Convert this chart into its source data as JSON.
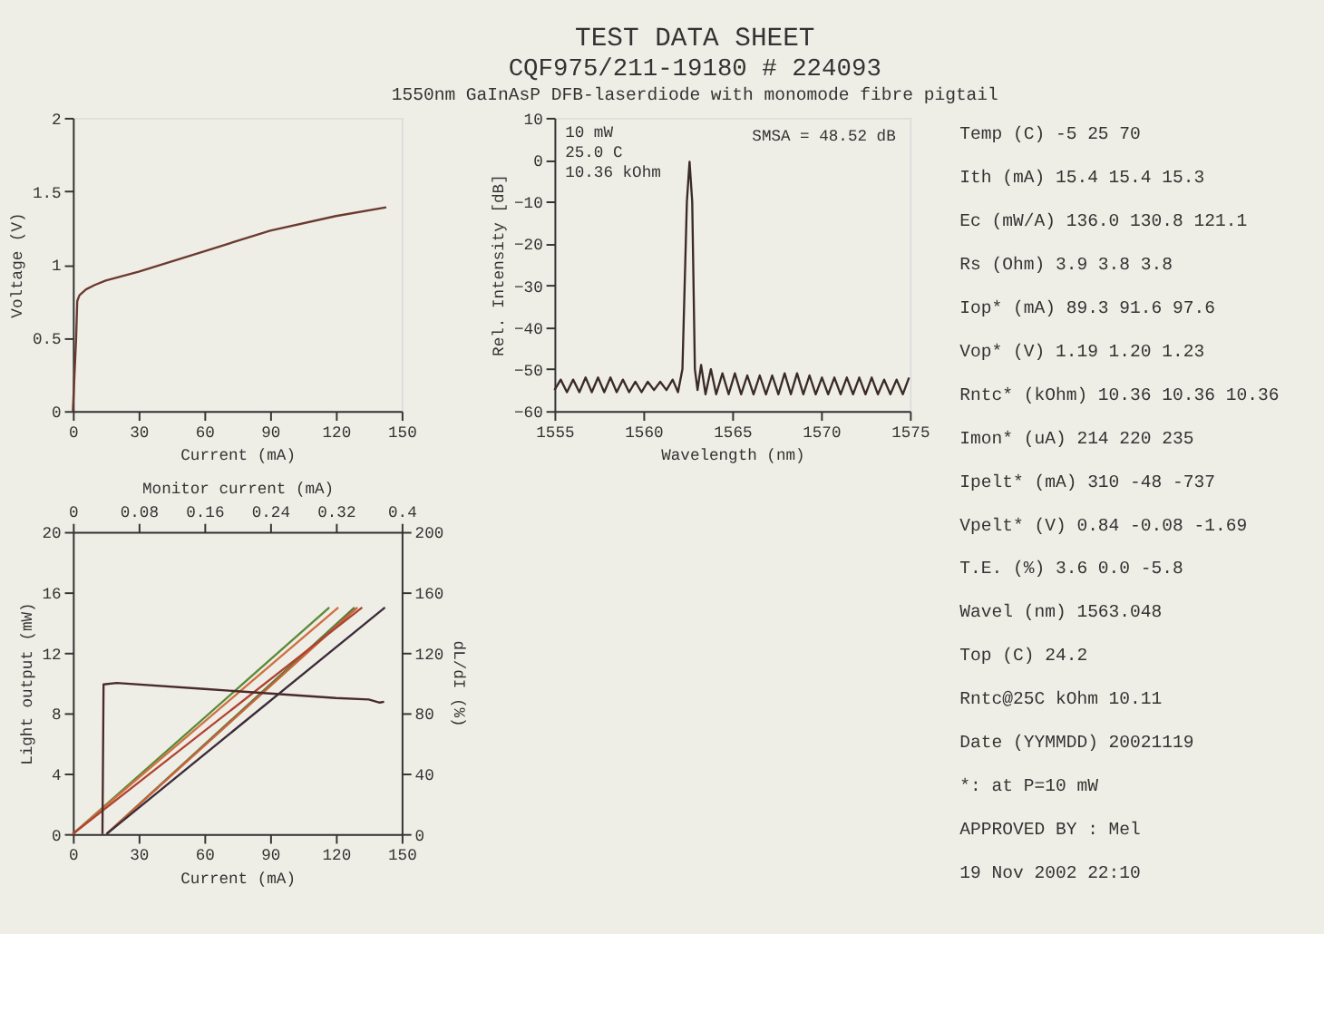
{
  "chart_data": [
    {
      "type": "other",
      "title": "TEST DATA SHEET",
      "subtitle": "CQF975/211-19180 # 224093",
      "annotations": [
        "1550nm GaInAsP DFB-laserdiode with monomode fibre pigtail"
      ]
    },
    {
      "type": "line",
      "xlabel": "Current (mA)",
      "ylabel": "Voltage (V)",
      "xlim": [
        0,
        150
      ],
      "xticks": [
        0,
        30,
        60,
        90,
        120,
        150
      ],
      "ylim": [
        0,
        2
      ],
      "yticks": [
        0,
        0.5,
        1,
        1.5,
        2
      ],
      "grid": false,
      "x": [
        0,
        1.5,
        2,
        3,
        6,
        10,
        15,
        20,
        30,
        60,
        90,
        120,
        143
      ],
      "series": [
        {
          "color": "#6b3a30",
          "values": [
            0,
            0.5,
            0.75,
            0.79,
            0.83,
            0.86,
            0.89,
            0.91,
            0.95,
            1.09,
            1.23,
            1.33,
            1.39
          ]
        }
      ]
    },
    {
      "type": "line",
      "xlabel": "Wavelength (nm)",
      "ylabel": "Rel. Intensity [dB]",
      "xlim": [
        1555,
        1575
      ],
      "xticks": [
        1555,
        1560,
        1565,
        1570,
        1575
      ],
      "ylim": [
        -60,
        10
      ],
      "yticks": [
        -60,
        -50,
        -40,
        -30,
        -20,
        -10,
        0,
        10
      ],
      "grid": false,
      "annotations": [
        "10 mW",
        "25.0 C",
        "10.36 kOhm",
        "SMSA = 48.52 dB"
      ],
      "x": [
        1555.0,
        1555.35,
        1555.7,
        1556.05,
        1556.4,
        1556.75,
        1557.1,
        1557.45,
        1557.8,
        1558.15,
        1558.5,
        1558.85,
        1559.2,
        1559.55,
        1559.9,
        1560.25,
        1560.6,
        1560.95,
        1561.3,
        1561.65,
        1561.95,
        1562.2,
        1562.45,
        1562.6,
        1562.75,
        1562.9,
        1563.05,
        1563.25,
        1563.5,
        1563.8,
        1564.1,
        1564.45,
        1564.8,
        1565.15,
        1565.5,
        1565.85,
        1566.2,
        1566.55,
        1566.9,
        1567.25,
        1567.6,
        1567.95,
        1568.3,
        1568.65,
        1569.0,
        1569.35,
        1569.7,
        1570.05,
        1570.4,
        1570.75,
        1571.1,
        1571.45,
        1571.8,
        1572.15,
        1572.5,
        1572.85,
        1573.2,
        1573.55,
        1573.9,
        1574.25,
        1574.6,
        1574.95
      ],
      "series": [
        {
          "color": "#3a2a2a",
          "values": [
            -55,
            -52.5,
            -55.5,
            -52.5,
            -55.5,
            -52,
            -55.5,
            -52,
            -55.5,
            -52,
            -55.5,
            -52.5,
            -55.5,
            -53,
            -55.5,
            -53,
            -55,
            -53,
            -55,
            -52.5,
            -55.5,
            -50,
            -10,
            -0.5,
            -10,
            -50,
            -55,
            -49,
            -56,
            -50,
            -56,
            -51,
            -56,
            -51,
            -56,
            -51.5,
            -56,
            -51.5,
            -56,
            -51.5,
            -56,
            -51,
            -56,
            -51,
            -56,
            -51.5,
            -56,
            -52,
            -56,
            -52,
            -56,
            -52,
            -56,
            -52,
            -56,
            -52,
            -56,
            -52.5,
            -56,
            -52.5,
            -56,
            -52
          ]
        }
      ]
    },
    {
      "type": "other",
      "annotations": [
        "Temp (C) -5 25 70",
        "Ith (mA) 15.4 15.4 15.3",
        "Ec (mW/A) 136.0 130.8 121.1",
        "Rs (Ohm) 3.9 3.8 3.8",
        "Iop* (mA) 89.3 91.6 97.6",
        "Vop* (V) 1.19 1.20 1.23",
        "Rntc* (kOhm) 10.36 10.36 10.36",
        "Imon* (uA) 214 220 235",
        "Ipelt* (mA) 310 -48 -737",
        "Vpelt* (V) 0.84 -0.08 -1.69",
        "T.E. (%) 3.6 0.0 -5.8",
        "Wavel (nm) 1563.048",
        "Top (C) 24.2",
        "Rntc@25C kOhm 10.11",
        "Date (YYMMDD) 20021119",
        "*: at P=10 mW",
        "APPROVED BY : Mel",
        "19 Nov 2002 22:10"
      ]
    },
    {
      "type": "line",
      "xlabel": "Current (mA)",
      "x2label": "Monitor current (mA)",
      "ylabel": "Light output (mW)",
      "y2label": "dL/dI (%)",
      "xlim": [
        0,
        150
      ],
      "xticks": [
        0,
        30,
        60,
        90,
        120,
        150
      ],
      "x2lim": [
        0,
        0.4
      ],
      "x2ticks": [
        0,
        0.08,
        0.16,
        0.24,
        0.32,
        0.4
      ],
      "ylim": [
        0,
        20
      ],
      "yticks": [
        0,
        4,
        8,
        12,
        16,
        20
      ],
      "y2lim": [
        0,
        200
      ],
      "y2ticks": [
        0,
        40,
        80,
        120,
        160,
        200
      ],
      "grid": false,
      "series": [
        {
          "color": "#5a7a3a",
          "x": [
            15.4,
            128.5
          ],
          "values": [
            0,
            15
          ]
        },
        {
          "color": "#c8643a",
          "x": [
            15.4,
            129.8
          ],
          "values": [
            0,
            15
          ]
        },
        {
          "color": "#3b2a3a",
          "x": [
            15.4,
            142.4
          ],
          "values": [
            0,
            15
          ]
        },
        {
          "color": "#5a8a3a",
          "axis": "x2",
          "x": [
            0,
            0.312
          ],
          "values": [
            0,
            15
          ]
        },
        {
          "color": "#d07040",
          "axis": "x2",
          "x": [
            0,
            0.323
          ],
          "values": [
            0,
            15
          ]
        },
        {
          "color": "#b04030",
          "axis": "x2",
          "x": [
            0,
            0.352
          ],
          "values": [
            0,
            15
          ]
        },
        {
          "color": "#4a2a2a",
          "axis": "y2",
          "x": [
            13.5,
            14,
            20,
            60,
            90,
            120,
            135,
            140,
            142
          ],
          "values": [
            0,
            99,
            100,
            96,
            93,
            90,
            89,
            87,
            87.5
          ]
        }
      ]
    }
  ]
}
